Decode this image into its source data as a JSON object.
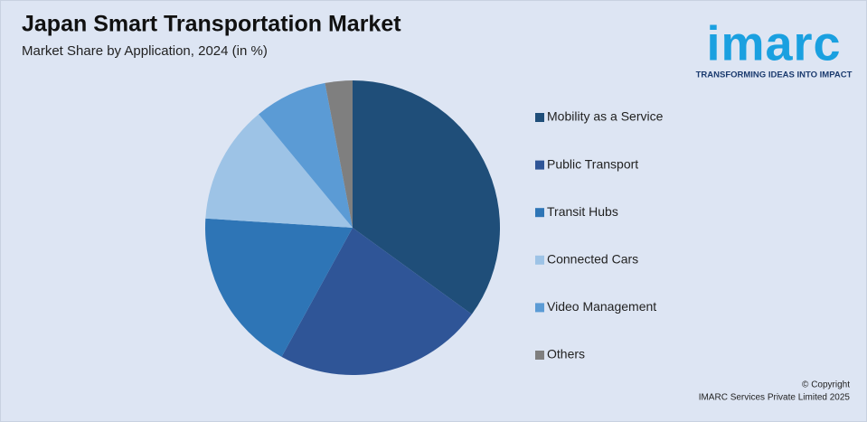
{
  "chart_data": {
    "type": "pie",
    "title": "Japan Smart Transportation Market",
    "subtitle": "Market Share by Application, 2024 (in %)",
    "categories": [
      "Mobility as a Service",
      "Public Transport",
      "Transit Hubs",
      "Connected Cars",
      "Video Management",
      "Others"
    ],
    "values": [
      35,
      23,
      18,
      13,
      8,
      3
    ],
    "colors": [
      "#1f4e79",
      "#2f5597",
      "#2e75b6",
      "#9dc3e6",
      "#5b9bd5",
      "#7f7f7f"
    ],
    "legend": "right"
  },
  "logo": {
    "name": "imarc",
    "tagline": "TRANSFORMING IDEAS INTO IMPACT"
  },
  "footer": {
    "copyright": "© Copyright",
    "company": "IMARC Services Private Limited 2025"
  }
}
